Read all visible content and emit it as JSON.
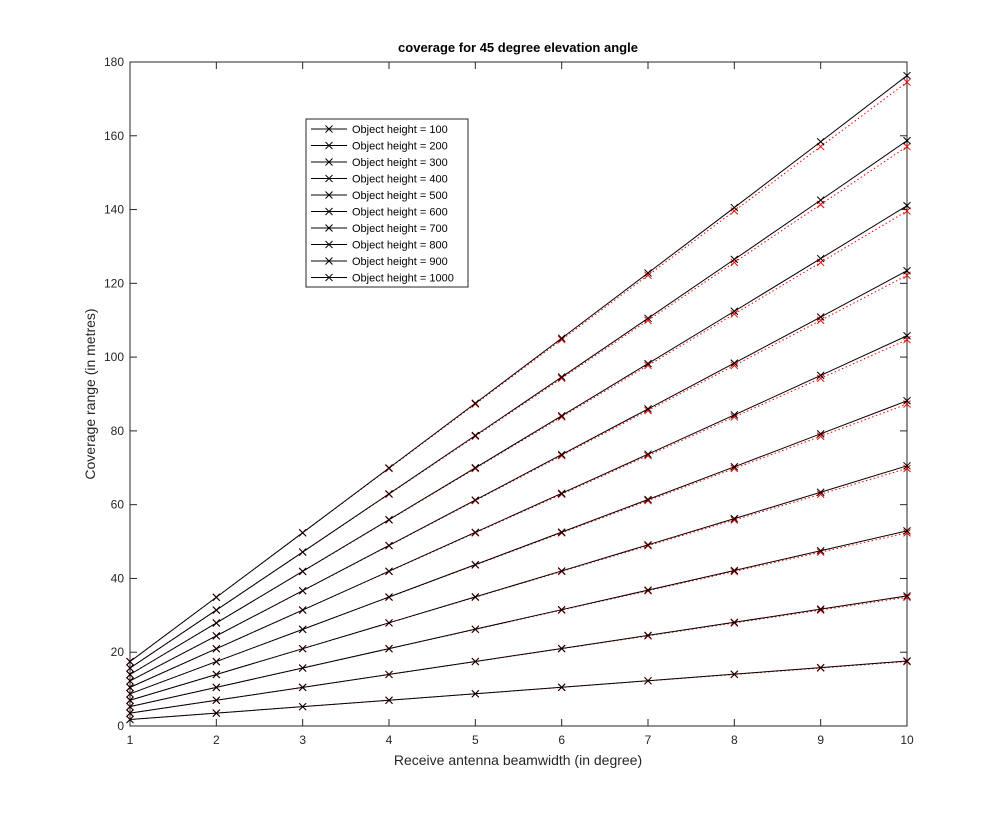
{
  "chart_data": {
    "type": "line",
    "title": "coverage for 45 degree elevation angle",
    "xlabel": "Receive antenna beamwidth (in degree)",
    "ylabel": "Coverage range (in metres)",
    "xlim": [
      1,
      10
    ],
    "ylim": [
      0,
      180
    ],
    "xticks": [
      "1",
      "2",
      "3",
      "4",
      "5",
      "6",
      "7",
      "8",
      "9",
      "10"
    ],
    "yticks": [
      "0",
      "20",
      "40",
      "60",
      "80",
      "100",
      "120",
      "140",
      "160",
      "180"
    ],
    "grid": false,
    "legend_position": "upper-left-inside",
    "x": [
      1,
      2,
      3,
      4,
      5,
      6,
      7,
      8,
      9,
      10
    ],
    "series": [
      {
        "name": "Object height = 100",
        "values": [
          1.75,
          3.49,
          5.24,
          6.99,
          8.75,
          10.51,
          12.28,
          14.05,
          15.84,
          17.63
        ],
        "approx": [
          1.75,
          3.49,
          5.24,
          6.98,
          8.73,
          10.47,
          12.22,
          13.96,
          15.71,
          17.45
        ]
      },
      {
        "name": "Object height = 200",
        "values": [
          3.49,
          6.98,
          10.48,
          13.98,
          17.5,
          21.02,
          24.56,
          28.11,
          31.68,
          35.26
        ],
        "approx": [
          3.49,
          6.98,
          10.47,
          13.96,
          17.45,
          20.94,
          24.43,
          27.93,
          31.42,
          34.91
        ]
      },
      {
        "name": "Object height = 300",
        "values": [
          5.24,
          10.48,
          15.72,
          20.98,
          26.25,
          31.53,
          36.84,
          42.16,
          47.52,
          52.89
        ],
        "approx": [
          5.24,
          10.47,
          15.71,
          20.94,
          26.18,
          31.42,
          36.65,
          41.89,
          47.12,
          52.36
        ]
      },
      {
        "name": "Object height = 400",
        "values": [
          6.98,
          13.96,
          20.96,
          27.97,
          35.0,
          42.04,
          49.12,
          56.22,
          63.36,
          70.53
        ],
        "approx": [
          6.98,
          13.96,
          20.94,
          27.93,
          34.91,
          41.89,
          48.87,
          55.85,
          62.83,
          69.81
        ]
      },
      {
        "name": "Object height = 500",
        "values": [
          8.73,
          17.46,
          26.2,
          34.97,
          43.75,
          52.56,
          61.4,
          70.27,
          79.2,
          88.16
        ],
        "approx": [
          8.73,
          17.45,
          26.18,
          34.91,
          43.63,
          52.36,
          61.09,
          69.81,
          78.54,
          87.27
        ]
      },
      {
        "name": "Object height = 600",
        "values": [
          10.47,
          20.95,
          31.44,
          41.96,
          52.5,
          63.07,
          73.68,
          84.33,
          95.04,
          105.79
        ],
        "approx": [
          10.47,
          20.94,
          31.42,
          41.89,
          52.36,
          62.83,
          73.3,
          83.78,
          94.25,
          104.72
        ]
      },
      {
        "name": "Object height = 700",
        "values": [
          12.22,
          24.44,
          36.68,
          48.95,
          61.25,
          73.58,
          85.96,
          98.38,
          110.87,
          123.42
        ],
        "approx": [
          12.22,
          24.43,
          36.65,
          48.87,
          61.09,
          73.3,
          85.52,
          97.74,
          109.96,
          122.17
        ]
      },
      {
        "name": "Object height = 800",
        "values": [
          13.96,
          27.93,
          41.92,
          55.94,
          70.0,
          84.09,
          98.24,
          112.43,
          126.71,
          141.06
        ],
        "approx": [
          13.96,
          27.93,
          41.89,
          55.85,
          69.81,
          83.78,
          97.74,
          111.7,
          125.66,
          139.63
        ]
      },
      {
        "name": "Object height = 900",
        "values": [
          15.71,
          31.42,
          47.16,
          62.94,
          78.75,
          94.6,
          110.52,
          126.49,
          142.55,
          158.69
        ],
        "approx": [
          15.71,
          31.42,
          47.12,
          62.83,
          78.54,
          94.25,
          109.96,
          125.66,
          141.37,
          157.08
        ]
      },
      {
        "name": "Object height = 1000",
        "values": [
          17.45,
          34.91,
          52.4,
          69.93,
          87.5,
          105.11,
          122.8,
          140.54,
          158.39,
          176.32
        ],
        "approx": [
          17.45,
          34.91,
          52.36,
          69.81,
          87.27,
          104.72,
          122.17,
          139.63,
          157.08,
          174.53
        ]
      }
    ],
    "colors": {
      "series_line": "#000000",
      "approx_line": "#ff0000",
      "axis": "#262626"
    }
  }
}
